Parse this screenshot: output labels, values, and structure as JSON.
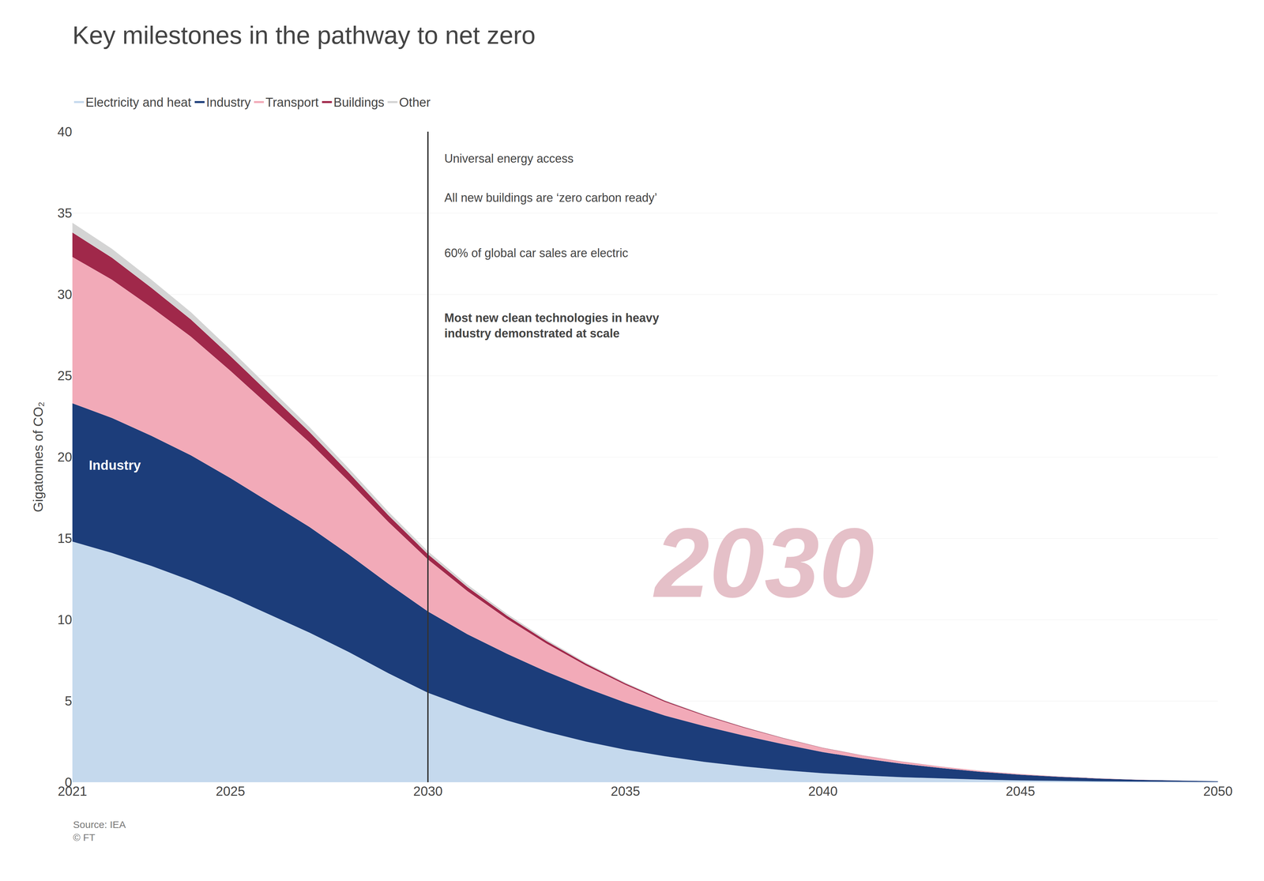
{
  "chart_data": {
    "type": "area",
    "stacked": true,
    "title": "Key milestones in the pathway to net zero",
    "ylabel": "Gigatonnes of CO₂",
    "x": [
      2021,
      2022,
      2023,
      2024,
      2025,
      2026,
      2027,
      2028,
      2029,
      2030,
      2031,
      2032,
      2033,
      2034,
      2035,
      2036,
      2037,
      2038,
      2039,
      2040,
      2041,
      2042,
      2043,
      2044,
      2045,
      2046,
      2047,
      2048,
      2049,
      2050
    ],
    "series": [
      {
        "name": "Electricity and heat",
        "color": "#c5d9ed",
        "values": [
          14.8,
          14.1,
          13.3,
          12.4,
          11.4,
          10.3,
          9.2,
          8.0,
          6.7,
          5.5,
          4.6,
          3.8,
          3.1,
          2.5,
          2.0,
          1.6,
          1.25,
          0.97,
          0.74,
          0.55,
          0.42,
          0.31,
          0.23,
          0.16,
          0.11,
          0.08,
          0.055,
          0.038,
          0.025,
          0.015
        ]
      },
      {
        "name": "Industry",
        "color": "#1c3d7a",
        "values": [
          8.5,
          8.3,
          8.0,
          7.7,
          7.3,
          6.9,
          6.5,
          6.0,
          5.5,
          5.0,
          4.5,
          4.1,
          3.7,
          3.3,
          2.9,
          2.5,
          2.2,
          1.9,
          1.6,
          1.3,
          1.05,
          0.83,
          0.64,
          0.48,
          0.35,
          0.25,
          0.17,
          0.11,
          0.07,
          0.04
        ]
      },
      {
        "name": "Transport",
        "color": "#f2aab8",
        "values": [
          9.0,
          8.5,
          7.9,
          7.3,
          6.6,
          5.9,
          5.2,
          4.5,
          3.8,
          3.2,
          2.65,
          2.15,
          1.73,
          1.38,
          1.09,
          0.84,
          0.64,
          0.48,
          0.35,
          0.25,
          0.17,
          0.12,
          0.08,
          0.055,
          0.037,
          0.025,
          0.016,
          0.01,
          0.006,
          0.003
        ]
      },
      {
        "name": "Buildings",
        "color": "#a0284a",
        "values": [
          1.5,
          1.35,
          1.2,
          1.05,
          0.9,
          0.77,
          0.64,
          0.52,
          0.41,
          0.32,
          0.25,
          0.19,
          0.15,
          0.11,
          0.085,
          0.063,
          0.047,
          0.034,
          0.025,
          0.017,
          0.012,
          0.008,
          0.005,
          0.003,
          0.002,
          0.001,
          0.001,
          0.0,
          0.0,
          0.0
        ]
      },
      {
        "name": "Other",
        "color": "#d4d4d4",
        "values": [
          0.6,
          0.55,
          0.5,
          0.45,
          0.4,
          0.35,
          0.3,
          0.26,
          0.22,
          0.18,
          0.15,
          0.12,
          0.09,
          0.07,
          0.055,
          0.04,
          0.03,
          0.022,
          0.016,
          0.011,
          0.008,
          0.005,
          0.003,
          0.002,
          0.001,
          0.001,
          0.0,
          0.0,
          0.0,
          0.0
        ]
      }
    ],
    "xlim": [
      2021,
      2050
    ],
    "xticks": [
      2021,
      2025,
      2030,
      2035,
      2040,
      2045,
      2050
    ],
    "ylim": [
      0,
      40
    ],
    "yticks": [
      0,
      5,
      10,
      15,
      20,
      25,
      30,
      35,
      40
    ],
    "grid": true,
    "legend": "top",
    "milestone_x": 2030,
    "milestones": [
      "Universal energy access",
      "All new buildings are ‘zero carbon ready’",
      "60% of global car sales are electric",
      "Most new clean technologies in heavy\nindustry demonstrated at scale"
    ],
    "watermark": {
      "text": "2030",
      "color": "#e5c0c8"
    },
    "band_label": {
      "text": "Industry",
      "color": "white"
    },
    "source": "Source: IEA\n© FT"
  }
}
